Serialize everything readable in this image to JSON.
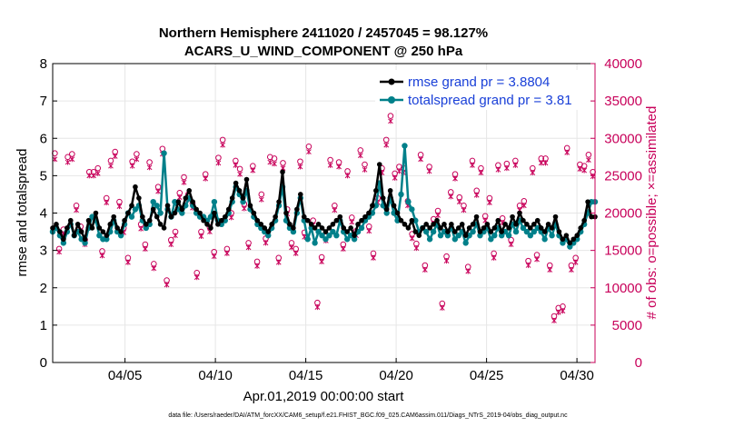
{
  "colors": {
    "rmse": "#000000",
    "spread": "#00808a",
    "obs": "#c8005a",
    "grid": "#e6e6e6",
    "legend_text": "#1a40d8"
  },
  "chart_data": {
    "type": "line",
    "title": [
      "Northern Hemisphere 2411020 / 2457045 = 98.127%",
      "ACARS_U_WIND_COMPONENT @ 250 hPa"
    ],
    "xlabel": "Apr.01,2019 00:00:00 start",
    "ylabel": "rmse and totalspread",
    "ylabel_right": "# of obs: o=possible; ×=assimilated",
    "xlim": [
      1,
      31
    ],
    "ylim": [
      0,
      8
    ],
    "ylim_right": [
      0,
      40000
    ],
    "x_ticks": [
      {
        "x": 5,
        "label": "04/05"
      },
      {
        "x": 10,
        "label": "04/10"
      },
      {
        "x": 15,
        "label": "04/15"
      },
      {
        "x": 20,
        "label": "04/20"
      },
      {
        "x": 25,
        "label": "04/25"
      },
      {
        "x": 30,
        "label": "04/30"
      }
    ],
    "y_ticks": [
      "0",
      "1",
      "2",
      "3",
      "4",
      "5",
      "6",
      "7",
      "8"
    ],
    "y_ticks_right": [
      "0",
      "5000",
      "10000",
      "15000",
      "20000",
      "25000",
      "30000",
      "35000",
      "40000"
    ],
    "grid": true,
    "legend_position": "top-right",
    "series": [
      {
        "name": "rmse grand pr = 3.8804",
        "color": "#000000",
        "values": [
          3.6,
          3.7,
          3.5,
          3.3,
          3.6,
          3.8,
          3.4,
          3.7,
          3.5,
          3.3,
          3.8,
          3.6,
          4.0,
          3.6,
          3.5,
          3.4,
          3.7,
          3.9,
          3.6,
          3.5,
          3.8,
          4.0,
          4.2,
          4.7,
          4.4,
          3.9,
          3.7,
          3.8,
          4.1,
          3.9,
          3.7,
          3.6,
          4.2,
          3.9,
          4.0,
          4.3,
          4.1,
          4.4,
          4.6,
          4.3,
          4.1,
          4.0,
          3.8,
          3.7,
          3.6,
          4.0,
          3.7,
          3.8,
          3.9,
          4.1,
          4.4,
          4.8,
          4.6,
          4.4,
          4.9,
          4.2,
          4.0,
          3.8,
          3.7,
          3.6,
          3.5,
          3.7,
          3.9,
          4.3,
          5.1,
          4.0,
          3.7,
          3.6,
          4.1,
          4.5,
          3.9,
          3.8,
          3.7,
          3.6,
          3.7,
          3.6,
          3.5,
          3.6,
          3.7,
          3.8,
          3.9,
          3.6,
          3.5,
          3.6,
          3.4,
          3.7,
          3.8,
          3.9,
          4.0,
          4.2,
          4.6,
          5.3,
          4.4,
          4.1,
          4.6,
          4.2,
          4.0,
          3.8,
          3.7,
          3.6,
          3.8,
          3.5,
          3.4,
          3.6,
          3.7,
          3.6,
          3.7,
          3.8,
          3.6,
          3.7,
          3.5,
          3.7,
          3.5,
          3.6,
          3.7,
          3.4,
          3.6,
          3.7,
          3.9,
          3.5,
          3.6,
          3.7,
          3.5,
          3.6,
          3.8,
          3.5,
          3.7,
          3.6,
          3.9,
          3.7,
          4.0,
          3.8,
          3.7,
          3.6,
          3.7,
          3.8,
          3.6,
          3.5,
          3.7,
          3.6,
          3.9,
          3.5,
          3.3,
          3.4,
          3.2,
          3.3,
          3.4,
          3.6,
          3.8,
          4.3,
          3.9,
          3.9
        ]
      },
      {
        "name": "totalspread grand pr = 3.81",
        "color": "#00808a",
        "values": [
          3.5,
          3.6,
          3.4,
          3.2,
          3.5,
          3.7,
          3.4,
          3.5,
          3.3,
          3.2,
          3.6,
          3.9,
          3.8,
          3.4,
          3.3,
          3.3,
          3.5,
          3.8,
          3.5,
          3.4,
          3.7,
          4.0,
          3.9,
          4.1,
          4.2,
          3.8,
          3.6,
          3.7,
          4.3,
          4.2,
          4.0,
          5.6,
          4.1,
          3.9,
          4.3,
          4.1,
          4.0,
          4.2,
          4.4,
          4.2,
          4.0,
          3.9,
          3.9,
          3.8,
          3.9,
          4.3,
          3.8,
          3.7,
          3.8,
          4.0,
          4.3,
          4.7,
          4.5,
          4.3,
          4.6,
          4.1,
          3.9,
          3.7,
          3.6,
          3.5,
          3.4,
          3.6,
          3.8,
          4.2,
          4.7,
          3.8,
          3.6,
          3.5,
          4.0,
          4.4,
          3.8,
          3.3,
          3.6,
          3.2,
          3.5,
          3.4,
          3.3,
          3.4,
          3.5,
          3.4,
          3.8,
          3.5,
          3.3,
          3.4,
          3.3,
          3.5,
          3.6,
          3.8,
          3.9,
          4.0,
          4.2,
          4.8,
          4.2,
          4.0,
          4.4,
          4.0,
          3.8,
          4.5,
          5.8,
          4.3,
          4.1,
          3.8,
          3.5,
          3.6,
          3.5,
          3.3,
          3.5,
          3.7,
          3.4,
          3.5,
          3.4,
          3.6,
          3.3,
          3.4,
          3.5,
          3.2,
          3.4,
          3.5,
          3.7,
          3.4,
          3.5,
          3.6,
          3.3,
          3.4,
          3.6,
          3.4,
          3.5,
          3.4,
          3.7,
          3.5,
          3.8,
          3.6,
          3.5,
          3.4,
          3.5,
          3.6,
          3.5,
          3.3,
          3.6,
          3.4,
          3.7,
          3.4,
          3.2,
          3.3,
          3.1,
          3.2,
          3.3,
          3.5,
          3.7,
          4.0,
          4.3,
          4.3
        ]
      },
      {
        "name": "obs possible",
        "color": "#c8005a",
        "marker": "o",
        "values": [
          28000,
          15200,
          17800,
          27500,
          27900,
          21000,
          18200,
          16400,
          25500,
          25500,
          26000,
          14900,
          22000,
          27000,
          28200,
          21500,
          18000,
          14000,
          26900,
          27900,
          18500,
          15800,
          26800,
          13200,
          23500,
          28600,
          11000,
          16400,
          17500,
          22700,
          24800,
          22500,
          21300,
          12000,
          17500,
          25200,
          18100,
          14800,
          27400,
          29800,
          15200,
          20000,
          27000,
          25900,
          21200,
          16000,
          26300,
          13500,
          22500,
          16600,
          27500,
          27300,
          14000,
          26700,
          20500,
          16000,
          15200,
          26900,
          17400,
          28900,
          19000,
          8000,
          14100,
          16900,
          27100,
          21000,
          26800,
          15800,
          25600,
          19400,
          17600,
          28400,
          26500,
          18200,
          14600,
          22000,
          26000,
          29800,
          33000,
          25300,
          26200,
          26000,
          21600,
          17200,
          15900,
          27800,
          13000,
          26200,
          19200,
          20300,
          7900,
          14200,
          22800,
          25200,
          22100,
          21000,
          12800,
          27000,
          23000,
          26000,
          19600,
          22000,
          14600,
          26400,
          19300,
          26600,
          16400,
          27000,
          21000,
          21600,
          13600,
          26000,
          14400,
          27300,
          27300,
          13000,
          6200,
          7300,
          7500,
          28700,
          13000,
          14000,
          26500,
          26300,
          27800,
          25500
        ]
      },
      {
        "name": "obs assimilated",
        "color": "#c8005a",
        "marker": "x",
        "values": [
          27200,
          14800,
          17200,
          26800,
          27200,
          20400,
          17600,
          15800,
          25000,
          25000,
          25300,
          14300,
          21400,
          26300,
          27600,
          20900,
          17400,
          13400,
          26300,
          27200,
          17900,
          15200,
          26100,
          12600,
          22900,
          27900,
          10400,
          15800,
          17000,
          22100,
          24100,
          21800,
          20700,
          11400,
          16900,
          24600,
          17500,
          14200,
          26700,
          29100,
          14600,
          19400,
          26400,
          25200,
          20600,
          15400,
          25700,
          12900,
          21800,
          16000,
          26800,
          26600,
          13400,
          26000,
          19900,
          15400,
          14600,
          26200,
          16800,
          28200,
          18400,
          7400,
          13500,
          16300,
          26400,
          20400,
          26200,
          15200,
          25000,
          18800,
          17000,
          27700,
          25800,
          17600,
          14000,
          21400,
          25400,
          29100,
          32300,
          24700,
          25600,
          25400,
          21000,
          16600,
          15300,
          27200,
          12400,
          25600,
          18600,
          19700,
          7300,
          13600,
          22200,
          24600,
          21500,
          20400,
          12200,
          26400,
          22400,
          25400,
          19000,
          21400,
          14000,
          25800,
          18700,
          26000,
          15800,
          26400,
          20400,
          21000,
          13000,
          25400,
          13800,
          26700,
          26700,
          12400,
          5600,
          6700,
          6900,
          28100,
          12400,
          13400,
          25900,
          25700,
          27100,
          24900
        ]
      }
    ]
  },
  "footer": "data file: /Users/raeder/DAI/ATM_forcXX/CAM6_setup/f.e21.FHIST_BGC.f09_025.CAM6assim.011/Diags_NTrS_2019-04/obs_diag_output.nc"
}
